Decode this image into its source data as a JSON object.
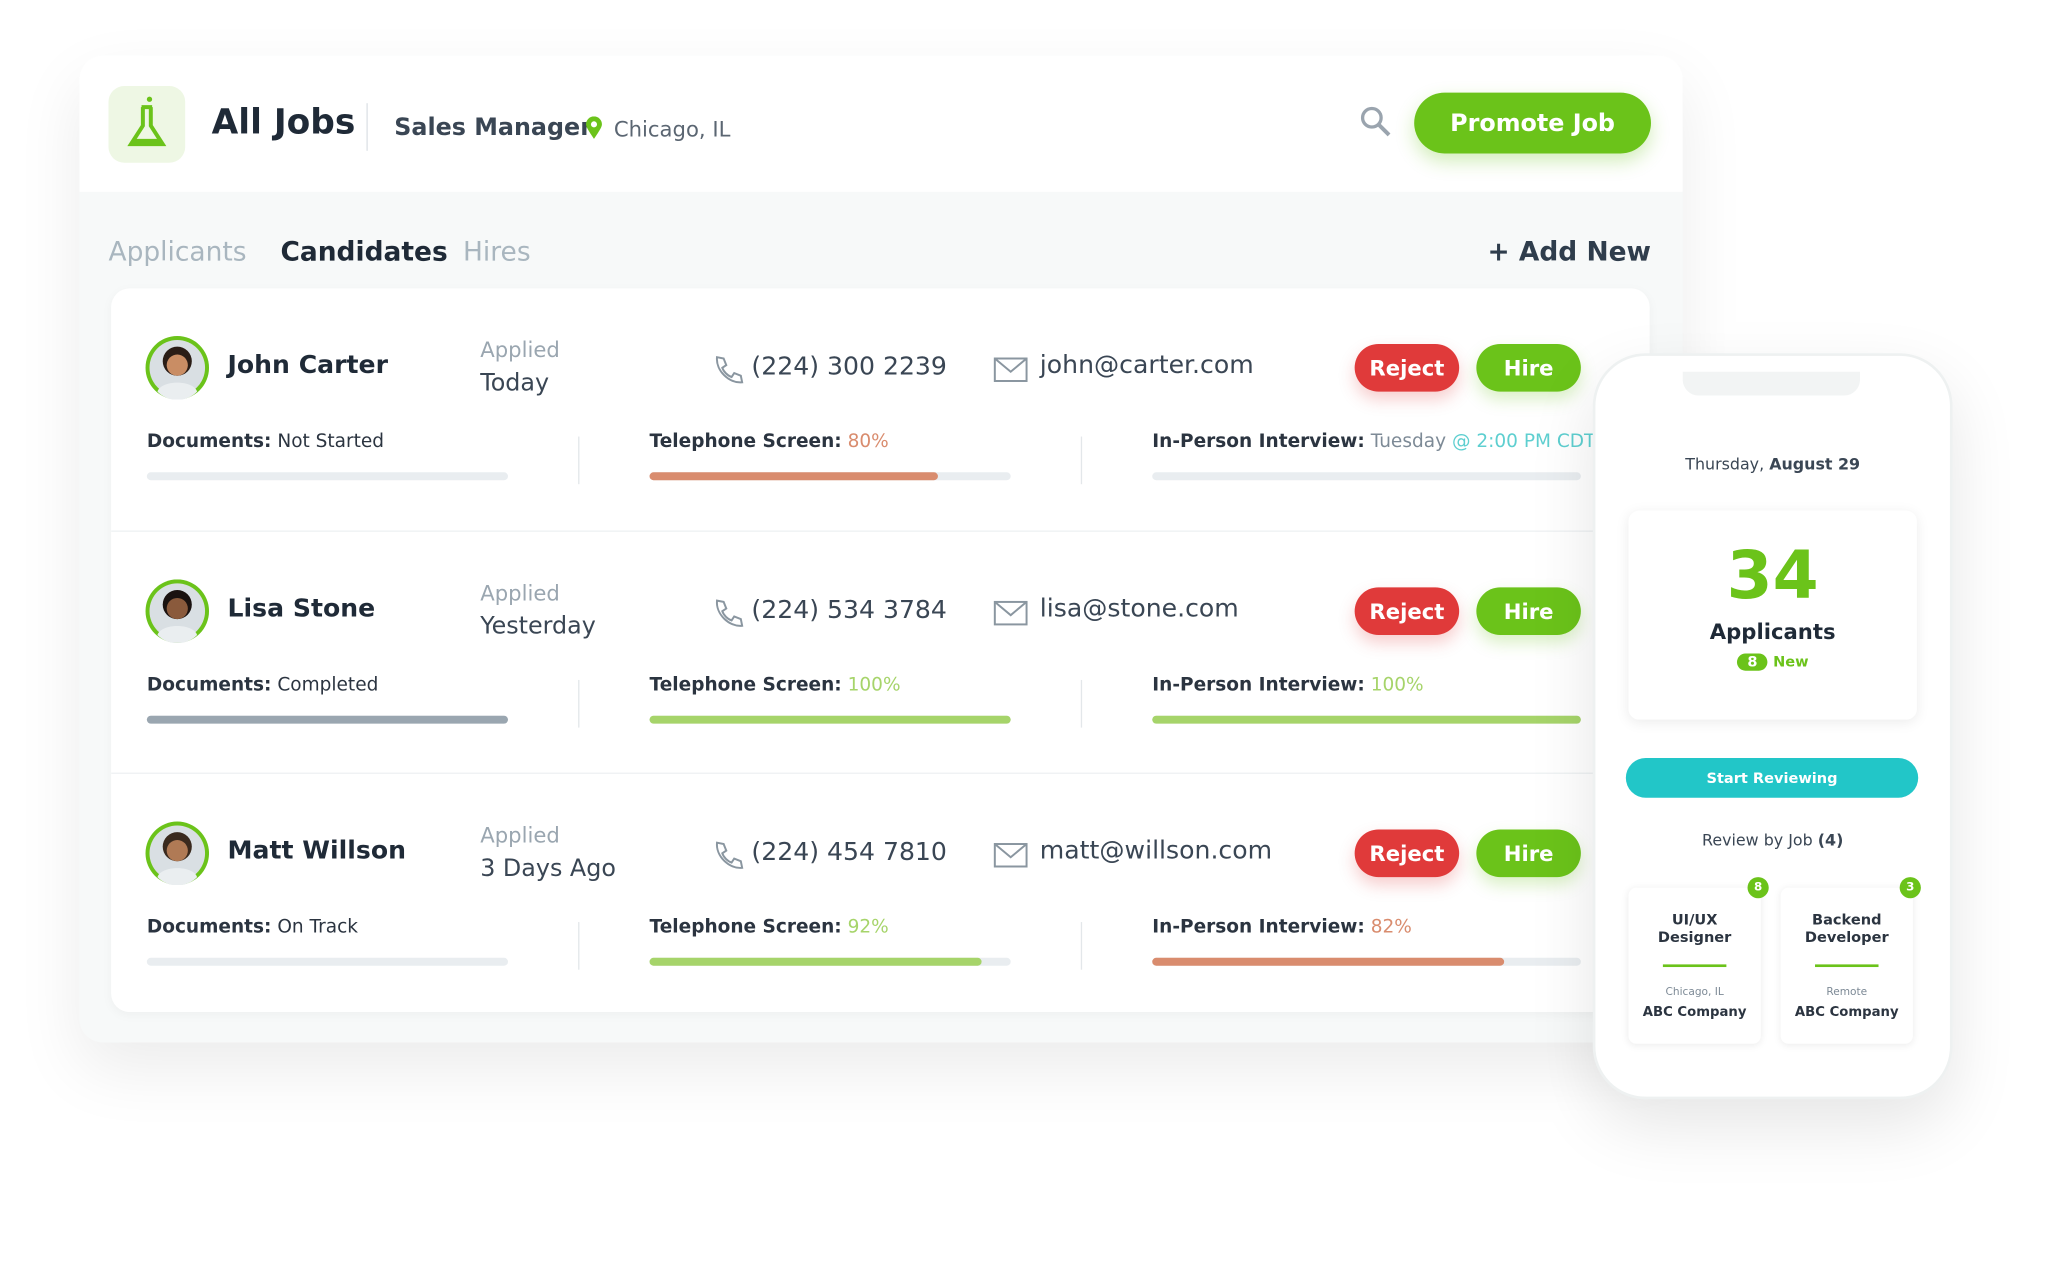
{
  "header": {
    "title": "All Jobs",
    "job": "Sales Manager",
    "location": "Chicago, IL",
    "promote_button": "Promote Job"
  },
  "tabs": [
    "Applicants",
    "Candidates",
    "Hires"
  ],
  "add_new": "+ Add New",
  "candidates": [
    {
      "name": "John Carter",
      "applied_label": "Applied",
      "applied": "Today",
      "phone": "(224) 300 2239",
      "email": "john@carter.com",
      "reject": "Reject",
      "hire": "Hire",
      "stages": [
        {
          "label": "Documents:",
          "status": "Not Started",
          "color": "#2b3440",
          "progress": 0
        },
        {
          "label": "Telephone Screen:",
          "status": "80%",
          "color": "#d98c6e",
          "progress": 80
        },
        {
          "label": "In-Person Interview:",
          "status": "Tuesday",
          "extra": "@ 2:00 PM CDT",
          "color": "#7d8a96",
          "progress": 0
        }
      ]
    },
    {
      "name": "Lisa Stone",
      "applied_label": "Applied",
      "applied": "Yesterday",
      "phone": "(224) 534 3784",
      "email": "lisa@stone.com",
      "reject": "Reject",
      "hire": "Hire",
      "stages": [
        {
          "label": "Documents:",
          "status": "Completed",
          "color": "#2b3440",
          "progress": 100,
          "bar_color": "#9aa6b0"
        },
        {
          "label": "Telephone Screen:",
          "status": "100%",
          "color": "#a6d46a",
          "progress": 100
        },
        {
          "label": "In-Person Interview:",
          "status": "100%",
          "color": "#a6d46a",
          "progress": 100
        }
      ]
    },
    {
      "name": "Matt Willson",
      "applied_label": "Applied",
      "applied": "3 Days Ago",
      "phone": "(224) 454 7810",
      "email": "matt@willson.com",
      "reject": "Reject",
      "hire": "Hire",
      "stages": [
        {
          "label": "Documents:",
          "status": "On Track",
          "color": "#2b3440",
          "progress": 0
        },
        {
          "label": "Telephone Screen:",
          "status": "92%",
          "color": "#a6d46a",
          "progress": 92
        },
        {
          "label": "In-Person Interview:",
          "status": "82%",
          "color": "#d98c6e",
          "progress": 82
        }
      ]
    }
  ],
  "phone": {
    "weekday": "Thursday,",
    "date": "August 29",
    "count": "34",
    "count_label": "Applicants",
    "new_count": "8",
    "new_label": "New",
    "start_button": "Start Reviewing",
    "review_label": "Review by Job",
    "review_count": "(4)",
    "jobs": [
      {
        "badge": "8",
        "title": "UI/UX Designer",
        "location": "Chicago, IL",
        "company": "ABC Company"
      },
      {
        "badge": "3",
        "title": "Backend Developer",
        "location": "Remote",
        "company": "ABC Company"
      }
    ]
  }
}
